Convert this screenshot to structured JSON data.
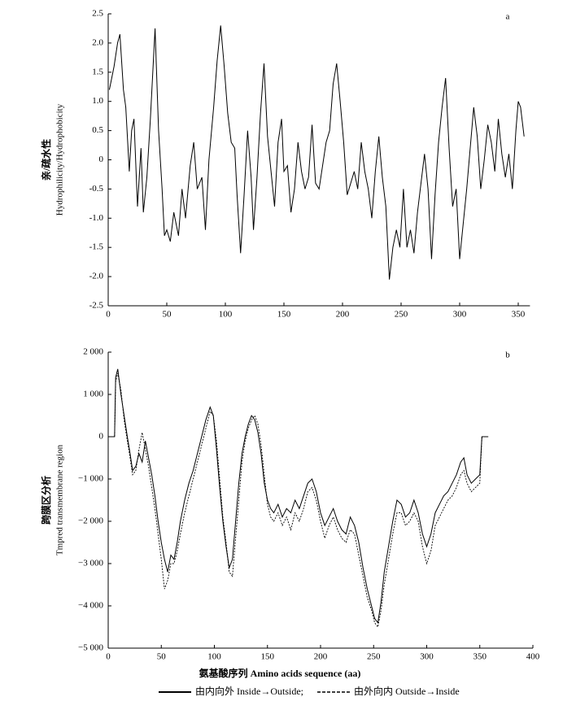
{
  "chart_data": [
    {
      "type": "line",
      "panel_label": "a",
      "ylabel": [
        "亲/疏水性",
        "Hydrophilicity/Hydrophobicity"
      ],
      "xlim": [
        0,
        360
      ],
      "xticks": [
        0,
        50,
        100,
        150,
        200,
        250,
        300,
        350
      ],
      "ylim": [
        -2.5,
        2.5
      ],
      "yticks": [
        -2.5,
        {
          "value": -2,
          "label": "-2.0"
        },
        -1.5,
        {
          "value": -1,
          "label": "-1.0"
        },
        -0.5,
        0,
        0.5,
        {
          "value": 1,
          "label": "1.0"
        },
        1.5,
        {
          "value": 2,
          "label": "2.0"
        },
        2.5
      ],
      "color": "#000000",
      "x": [
        1,
        5,
        8,
        10,
        13,
        15,
        18,
        20,
        22,
        25,
        28,
        30,
        33,
        36,
        40,
        43,
        46,
        48,
        50,
        53,
        56,
        60,
        63,
        66,
        70,
        73,
        76,
        80,
        83,
        86,
        90,
        93,
        96,
        99,
        102,
        105,
        108,
        110,
        113,
        116,
        119,
        122,
        124,
        127,
        130,
        133,
        136,
        139,
        142,
        145,
        148,
        150,
        153,
        156,
        159,
        162,
        165,
        168,
        171,
        174,
        177,
        180,
        183,
        186,
        189,
        192,
        195,
        198,
        201,
        204,
        207,
        210,
        213,
        216,
        219,
        222,
        225,
        228,
        231,
        234,
        237,
        240,
        243,
        246,
        249,
        252,
        255,
        258,
        261,
        264,
        267,
        270,
        273,
        276,
        279,
        282,
        285,
        288,
        291,
        294,
        297,
        300,
        303,
        306,
        309,
        312,
        315,
        318,
        321,
        324,
        327,
        330,
        333,
        336,
        339,
        342,
        345,
        348,
        350,
        352,
        355
      ],
      "values": [
        1.2,
        1.6,
        2.0,
        2.15,
        1.2,
        0.9,
        -0.2,
        0.5,
        0.7,
        -0.8,
        0.2,
        -0.9,
        -0.3,
        0.7,
        2.25,
        0.5,
        -0.5,
        -1.3,
        -1.2,
        -1.4,
        -0.9,
        -1.3,
        -0.5,
        -1.0,
        -0.1,
        0.3,
        -0.5,
        -0.3,
        -1.2,
        0.0,
        0.9,
        1.7,
        2.3,
        1.6,
        0.8,
        0.3,
        0.2,
        -0.6,
        -1.6,
        -0.6,
        0.5,
        -0.3,
        -1.2,
        -0.3,
        0.8,
        1.65,
        0.4,
        -0.2,
        -0.8,
        0.3,
        0.7,
        -0.2,
        -0.1,
        -0.9,
        -0.5,
        0.3,
        -0.2,
        -0.5,
        -0.3,
        0.6,
        -0.4,
        -0.5,
        -0.1,
        0.3,
        0.5,
        1.3,
        1.65,
        1.0,
        0.3,
        -0.6,
        -0.4,
        -0.2,
        -0.5,
        0.3,
        -0.2,
        -0.5,
        -1.0,
        -0.2,
        0.4,
        -0.3,
        -0.8,
        -2.05,
        -1.5,
        -1.2,
        -1.5,
        -0.5,
        -1.5,
        -1.2,
        -1.6,
        -0.9,
        -0.4,
        0.1,
        -0.5,
        -1.7,
        -0.6,
        0.3,
        0.9,
        1.4,
        0.2,
        -0.8,
        -0.5,
        -1.7,
        -1.1,
        -0.5,
        0.2,
        0.9,
        0.4,
        -0.5,
        0.0,
        0.6,
        0.3,
        -0.2,
        0.7,
        0.1,
        -0.3,
        0.1,
        -0.5,
        0.5,
        1.0,
        0.9,
        0.4
      ]
    },
    {
      "type": "line",
      "panel_label": "b",
      "ylabel": [
        "跨膜区分析",
        "Tmpred transmembrane region"
      ],
      "xlabel": "氨基酸序列 Amino acids sequence (aa)",
      "xlim": [
        0,
        400
      ],
      "xticks": [
        0,
        50,
        100,
        150,
        200,
        250,
        300,
        350,
        400
      ],
      "ylim": [
        -5000,
        2000
      ],
      "yticks": [
        {
          "value": -5000,
          "label": "−5 000"
        },
        {
          "value": -4000,
          "label": "−4 000"
        },
        {
          "value": -3000,
          "label": "−3 000"
        },
        {
          "value": -2000,
          "label": "−2 000"
        },
        {
          "value": -1000,
          "label": "−1 000"
        },
        0,
        {
          "value": 1000,
          "label": "1 000"
        },
        {
          "value": 2000,
          "label": "2 000"
        }
      ],
      "x": [
        1,
        6,
        7,
        9,
        12,
        15,
        18,
        20,
        23,
        26,
        29,
        32,
        35,
        38,
        41,
        44,
        47,
        50,
        53,
        56,
        59,
        62,
        65,
        68,
        72,
        76,
        80,
        84,
        88,
        92,
        96,
        99,
        102,
        105,
        108,
        111,
        114,
        117,
        120,
        123,
        126,
        129,
        132,
        135,
        138,
        141,
        144,
        147,
        150,
        153,
        156,
        160,
        164,
        168,
        172,
        176,
        180,
        184,
        188,
        192,
        196,
        200,
        204,
        208,
        212,
        216,
        220,
        224,
        228,
        232,
        236,
        240,
        244,
        248,
        251,
        254,
        257,
        260,
        264,
        268,
        272,
        276,
        280,
        284,
        288,
        292,
        296,
        300,
        304,
        308,
        312,
        316,
        320,
        324,
        328,
        332,
        335,
        338,
        342,
        346,
        350,
        352,
        358
      ],
      "series": [
        {
          "name": "由内向外 Inside→Outside;",
          "color": "#000000",
          "line_style": "solid",
          "values": [
            0,
            0,
            1400,
            1600,
            1000,
            500,
            0,
            -300,
            -800,
            -700,
            -400,
            -600,
            -100,
            -500,
            -900,
            -1400,
            -2000,
            -2500,
            -2900,
            -3200,
            -2800,
            -2900,
            -2500,
            -2000,
            -1500,
            -1100,
            -800,
            -400,
            0,
            400,
            700,
            500,
            -300,
            -1200,
            -2000,
            -2600,
            -3100,
            -2900,
            -2000,
            -1100,
            -400,
            0,
            300,
            500,
            400,
            100,
            -400,
            -1100,
            -1500,
            -1700,
            -1800,
            -1600,
            -1900,
            -1700,
            -1800,
            -1500,
            -1700,
            -1400,
            -1100,
            -1000,
            -1300,
            -1800,
            -2100,
            -1900,
            -1700,
            -2000,
            -2200,
            -2300,
            -1900,
            -2100,
            -2500,
            -3100,
            -3600,
            -4000,
            -4300,
            -4400,
            -3900,
            -3200,
            -2600,
            -2000,
            -1500,
            -1600,
            -1900,
            -1800,
            -1500,
            -1800,
            -2300,
            -2600,
            -2300,
            -1800,
            -1600,
            -1400,
            -1300,
            -1100,
            -900,
            -600,
            -500,
            -900,
            -1100,
            -1000,
            -900,
            0,
            0
          ]
        },
        {
          "name": "由外向内 Outside→Inside",
          "color": "#000000",
          "line_style": "dashed",
          "values": [
            0,
            0,
            1300,
            1500,
            1100,
            400,
            -100,
            -400,
            -900,
            -800,
            -300,
            100,
            -300,
            -700,
            -1200,
            -1700,
            -2300,
            -2900,
            -3600,
            -3400,
            -3000,
            -3000,
            -2700,
            -2300,
            -1800,
            -1400,
            -1000,
            -600,
            -200,
            200,
            600,
            500,
            -100,
            -1000,
            -1900,
            -2500,
            -3200,
            -3300,
            -2400,
            -1500,
            -600,
            -100,
            200,
            400,
            500,
            300,
            -200,
            -900,
            -1600,
            -1900,
            -2000,
            -1800,
            -2100,
            -1900,
            -2200,
            -1800,
            -2000,
            -1700,
            -1300,
            -1200,
            -1500,
            -2000,
            -2400,
            -2100,
            -1900,
            -2200,
            -2400,
            -2500,
            -2200,
            -2300,
            -2800,
            -3300,
            -3800,
            -4100,
            -4400,
            -4500,
            -4100,
            -3500,
            -2900,
            -2300,
            -1800,
            -1800,
            -2100,
            -2000,
            -1800,
            -2000,
            -2600,
            -3000,
            -2700,
            -2100,
            -1900,
            -1700,
            -1500,
            -1400,
            -1200,
            -900,
            -800,
            -1100,
            -1300,
            -1200,
            -1100,
            0,
            0
          ]
        }
      ]
    }
  ]
}
